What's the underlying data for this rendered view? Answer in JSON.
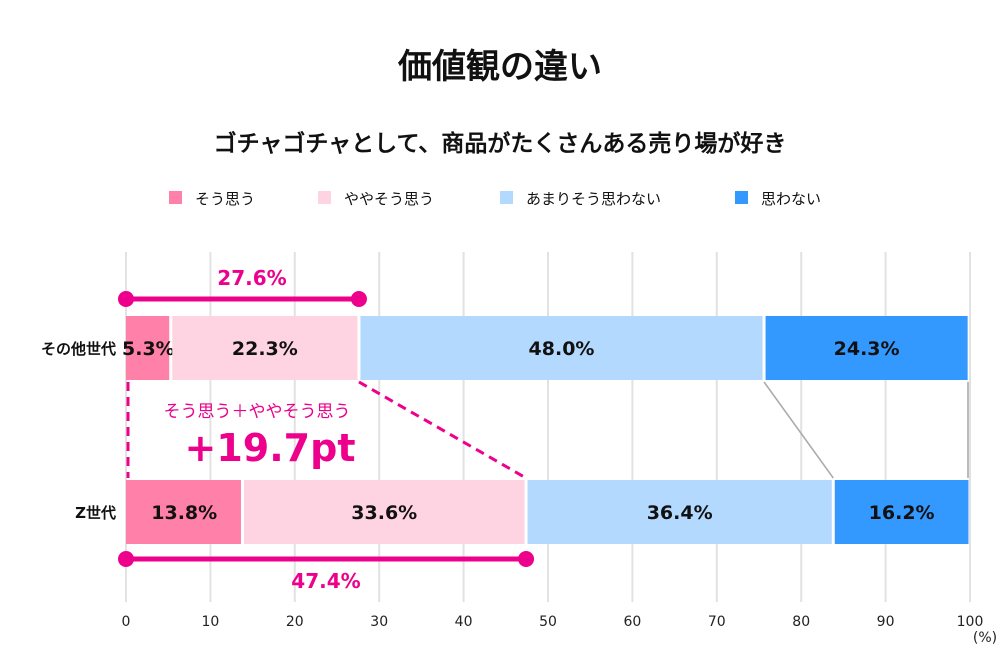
{
  "chart_data": {
    "type": "bar",
    "orientation": "horizontal",
    "stacked": true,
    "title": "価値観の違い",
    "subtitle": "ゴチャゴチャとして、商品がたくさんある売り場が好き",
    "categories": [
      "その他世代",
      "Z世代"
    ],
    "series": [
      {
        "name": "そう思う",
        "color": "#FF80A8",
        "values": [
          5.3,
          13.8
        ]
      },
      {
        "name": "ややそう思う",
        "color": "#FFD4E2",
        "values": [
          22.3,
          33.6
        ]
      },
      {
        "name": "あまりそう思わない",
        "color": "#B3D9FF",
        "values": [
          48.0,
          36.4
        ]
      },
      {
        "name": "思わない",
        "color": "#3399FF",
        "values": [
          24.3,
          16.2
        ]
      }
    ],
    "data_labels": [
      [
        "5.3%",
        "22.3%",
        "48.0%",
        "24.3%"
      ],
      [
        "13.8%",
        "33.6%",
        "36.4%",
        "16.2%"
      ]
    ],
    "xlim": [
      0,
      100
    ],
    "xticks": [
      0,
      10,
      20,
      30,
      40,
      50,
      60,
      70,
      80,
      90,
      100
    ],
    "xunit": "(%)",
    "grid": true,
    "legend_position": "top",
    "annotations": {
      "color": "#EC008C",
      "sum_other": "27.6%",
      "sum_z": "47.4%",
      "diff_caption": "そう思う＋ややそう思う",
      "diff_value": "+19.7pt"
    }
  }
}
